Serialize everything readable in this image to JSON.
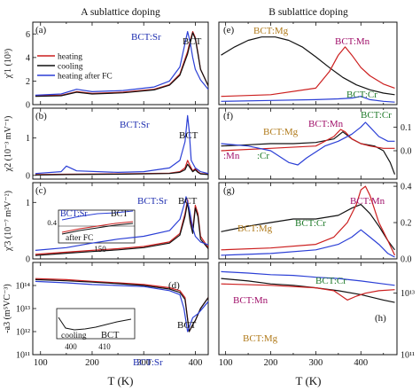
{
  "figure": {
    "col_titles": [
      "A sublattice doping",
      "B sublattice doping"
    ],
    "x_axis_label": "T (K)",
    "left_x_ticks": [
      100,
      200,
      300,
      400
    ],
    "right_x_ticks": [
      100,
      200,
      300,
      400
    ],
    "legend": [
      "heating",
      "cooling",
      "heating after FC"
    ]
  },
  "colors": {
    "heating": "#cc1f1f",
    "cooling": "#111111",
    "heating_after_fc": "#2b3fd6",
    "label_sr": "#1f2fb0",
    "label_mg": "#b07a1a",
    "label_mn": "#a0106a",
    "label_cr": "#1f7a2a",
    "label_black": "#111111"
  },
  "chart_data": [
    {
      "panel": "a",
      "type": "line",
      "ylabel": "χ'1 (10³)",
      "xlim": [
        85,
        425
      ],
      "ylim": [
        0,
        7
      ],
      "yticks": [
        "0",
        "2",
        "4",
        "6"
      ],
      "annotations": [
        "BCT:Sr",
        "BCT"
      ],
      "series": [
        {
          "name": "heating",
          "x": [
            90,
            140,
            170,
            200,
            260,
            320,
            350,
            370,
            385,
            390,
            395,
            400,
            405,
            410,
            425
          ],
          "values": [
            0.75,
            0.8,
            1.1,
            0.95,
            1.05,
            1.3,
            1.7,
            2.6,
            4.5,
            5.4,
            6.2,
            5.7,
            4.4,
            3.0,
            1.6
          ]
        },
        {
          "name": "cooling",
          "x": [
            90,
            140,
            170,
            200,
            260,
            320,
            350,
            370,
            385,
            390,
            395,
            400,
            405,
            410,
            425
          ],
          "values": [
            0.7,
            0.75,
            1.05,
            0.9,
            1.0,
            1.25,
            1.65,
            2.5,
            4.3,
            5.2,
            6.1,
            5.6,
            4.3,
            3.0,
            1.6
          ]
        },
        {
          "name": "heating after FC",
          "x": [
            90,
            140,
            170,
            200,
            260,
            320,
            350,
            370,
            380,
            385,
            390,
            395,
            400,
            410,
            425
          ],
          "values": [
            0.8,
            0.9,
            1.3,
            1.1,
            1.2,
            1.5,
            2.0,
            3.2,
            5.2,
            6.2,
            5.3,
            4.0,
            3.0,
            2.1,
            1.3
          ]
        }
      ]
    },
    {
      "panel": "b",
      "type": "line",
      "ylabel": "χ2 (10⁻³ mV⁻¹)",
      "xlim": [
        85,
        425
      ],
      "ylim": [
        -0.1,
        1.8
      ],
      "yticks": [
        "0",
        "1"
      ],
      "annotations": [
        "BCT:Sr",
        "BCT"
      ],
      "series": [
        {
          "name": "heating",
          "x": [
            90,
            150,
            250,
            350,
            370,
            380,
            385,
            390,
            395,
            400,
            405,
            410,
            425
          ],
          "values": [
            0.02,
            0.03,
            0.04,
            0.06,
            0.1,
            0.2,
            0.4,
            0.25,
            0.12,
            0.18,
            0.1,
            0.05,
            0.03
          ]
        },
        {
          "name": "cooling",
          "x": [
            90,
            150,
            250,
            350,
            370,
            380,
            385,
            390,
            395,
            400,
            405,
            410,
            425
          ],
          "values": [
            0.01,
            0.02,
            0.03,
            0.05,
            0.08,
            0.15,
            0.3,
            0.2,
            0.1,
            0.15,
            0.08,
            0.04,
            0.02
          ]
        },
        {
          "name": "heating after FC",
          "x": [
            90,
            140,
            150,
            170,
            250,
            300,
            350,
            370,
            380,
            385,
            388,
            392,
            400,
            410,
            425
          ],
          "values": [
            0.05,
            0.1,
            0.25,
            0.12,
            0.08,
            0.1,
            0.2,
            0.4,
            0.9,
            1.6,
            1.2,
            0.4,
            0.2,
            0.1,
            0.05
          ]
        }
      ]
    },
    {
      "panel": "c",
      "type": "line",
      "ylabel": "χ'3 (10⁻⁷ m²V⁻²)",
      "xlim": [
        85,
        425
      ],
      "ylim": [
        0,
        1.35
      ],
      "yticks": [
        "0",
        "1"
      ],
      "annotations": [
        "BCT:Sr",
        "BCT",
        "BCT:Sr",
        "BCT",
        "after FC"
      ],
      "inset": {
        "xticks": [
          "150"
        ],
        "yticks": [
          "0.4"
        ]
      },
      "series": [
        {
          "name": "heating",
          "x": [
            90,
            150,
            200,
            250,
            300,
            350,
            370,
            380,
            385,
            390,
            395,
            400,
            405,
            410,
            425
          ],
          "values": [
            0.08,
            0.12,
            0.15,
            0.18,
            0.22,
            0.3,
            0.45,
            0.8,
            1.05,
            0.7,
            0.5,
            0.95,
            0.8,
            0.4,
            0.2
          ]
        },
        {
          "name": "cooling",
          "x": [
            90,
            150,
            200,
            250,
            300,
            350,
            370,
            380,
            385,
            390,
            395,
            400,
            405,
            410,
            425
          ],
          "values": [
            0.06,
            0.1,
            0.13,
            0.16,
            0.2,
            0.28,
            0.42,
            0.75,
            1.0,
            0.65,
            0.45,
            0.9,
            0.75,
            0.35,
            0.18
          ]
        },
        {
          "name": "heating after FC",
          "x": [
            90,
            150,
            200,
            250,
            300,
            350,
            370,
            378,
            382,
            388,
            395,
            400,
            410,
            425
          ],
          "values": [
            0.15,
            0.2,
            0.28,
            0.35,
            0.4,
            0.5,
            0.7,
            0.95,
            1.1,
            0.9,
            0.55,
            0.4,
            0.3,
            0.25
          ]
        }
      ]
    },
    {
      "panel": "d",
      "type": "line",
      "ylabel": "-a3 (m⁵VC⁻³)",
      "scale": "log",
      "xlim": [
        85,
        425
      ],
      "ylim": [
        100000000000.0,
        1000000000000000.0
      ],
      "yticks": [
        "10¹¹",
        "10¹²",
        "10¹³",
        "10¹⁴"
      ],
      "annotations": [
        "BCT",
        "BCT:Sr",
        "BCT"
      ],
      "inset": {
        "xticks": [
          "400",
          "410"
        ],
        "label": "cooling"
      },
      "series": [
        {
          "name": "heating",
          "x": [
            90,
            150,
            200,
            250,
            300,
            350,
            370,
            380,
            388,
            395,
            400,
            410,
            425
          ],
          "values": [
            200000000000000.0,
            180000000000000.0,
            150000000000000.0,
            130000000000000.0,
            110000000000000.0,
            80000000000000.0,
            60000000000000.0,
            30000000000000.0,
            1000000000000.0,
            2000000000000.0,
            3000000000000.0,
            10000000000000.0,
            30000000000000.0
          ]
        },
        {
          "name": "cooling",
          "x": [
            90,
            150,
            200,
            250,
            300,
            350,
            370,
            380,
            388,
            395,
            400,
            410,
            425
          ],
          "values": [
            180000000000000.0,
            160000000000000.0,
            140000000000000.0,
            120000000000000.0,
            100000000000000.0,
            70000000000000.0,
            50000000000000.0,
            25000000000000.0,
            1000000000000.0,
            2000000000000.0,
            3000000000000.0,
            10000000000000.0,
            30000000000000.0
          ]
        },
        {
          "name": "heating after FC",
          "x": [
            90,
            150,
            200,
            250,
            300,
            350,
            370,
            378,
            385,
            395,
            405,
            425
          ],
          "values": [
            150000000000000.0,
            130000000000000.0,
            110000000000000.0,
            100000000000000.0,
            90000000000000.0,
            60000000000000.0,
            40000000000000.0,
            10000000000000.0,
            1000000000000.0,
            4000000000000.0,
            6000000000000.0,
            20000000000000.0
          ]
        }
      ]
    },
    {
      "panel": "e",
      "type": "line",
      "ylabel": "",
      "xlim": [
        85,
        480
      ],
      "ylim": [
        0,
        1
      ],
      "yticks": [],
      "annotations": [
        "BCT:Mg",
        "BCT:Mn",
        "BCT:Cr"
      ],
      "series": [
        {
          "name": "BCT:Mg heating",
          "x": [
            90,
            120,
            150,
            180,
            210,
            240,
            270,
            300,
            330,
            360,
            390,
            420,
            450,
            475
          ],
          "values": [
            0.6,
            0.7,
            0.78,
            0.82,
            0.82,
            0.78,
            0.7,
            0.58,
            0.45,
            0.33,
            0.24,
            0.18,
            0.14,
            0.12
          ]
        },
        {
          "name": "BCT:Mn heating",
          "x": [
            90,
            200,
            300,
            330,
            350,
            365,
            380,
            400,
            420,
            450,
            475
          ],
          "values": [
            0.1,
            0.12,
            0.2,
            0.4,
            0.6,
            0.7,
            0.6,
            0.45,
            0.35,
            0.25,
            0.2
          ]
        },
        {
          "name": "BCT:Cr heating",
          "x": [
            90,
            200,
            300,
            350,
            380,
            400,
            420,
            450,
            475
          ],
          "values": [
            0.04,
            0.05,
            0.06,
            0.07,
            0.08,
            0.1,
            0.06,
            0.04,
            0.03
          ]
        }
      ]
    },
    {
      "panel": "f",
      "type": "line",
      "ylabel": "",
      "xlim": [
        85,
        480
      ],
      "ylim": [
        -0.12,
        0.18
      ],
      "yticks": [
        "0.0",
        "0.1"
      ],
      "annotations": [
        "BCT:Mg",
        "BCT:Mn",
        "BCT:Cr",
        ":Mn",
        ":Cr"
      ],
      "series": [
        {
          "name": "BCT:Mg heating",
          "x": [
            90,
            150,
            200,
            250,
            300,
            340,
            360,
            380,
            400,
            430,
            450,
            465,
            475
          ],
          "values": [
            0.02,
            0.025,
            0.03,
            0.03,
            0.035,
            0.05,
            0.08,
            0.05,
            0.03,
            0.02,
            0.0,
            -0.05,
            -0.1
          ]
        },
        {
          "name": "BCT:Mn heating",
          "x": [
            90,
            200,
            300,
            340,
            355,
            365,
            380,
            400,
            420,
            450,
            475
          ],
          "values": [
            0.0,
            0.01,
            0.02,
            0.06,
            0.09,
            0.08,
            0.05,
            0.03,
            0.02,
            0.01,
            0.01
          ]
        },
        {
          "name": "BCT:Cr heating",
          "x": [
            90,
            150,
            200,
            240,
            260,
            280,
            320,
            350,
            380,
            400,
            410,
            420,
            440,
            460,
            475
          ],
          "values": [
            0.03,
            0.02,
            0.0,
            -0.05,
            -0.06,
            -0.03,
            0.02,
            0.04,
            0.07,
            0.1,
            0.12,
            0.1,
            0.06,
            0.04,
            0.04
          ]
        }
      ]
    },
    {
      "panel": "g",
      "type": "line",
      "ylabel": "",
      "xlim": [
        85,
        480
      ],
      "ylim": [
        0,
        0.42
      ],
      "yticks": [
        "0.0",
        "0.2",
        "0.4"
      ],
      "annotations": [
        "BCT:Mn",
        "BCT:Cr",
        "BCT:Mg"
      ],
      "series": [
        {
          "name": "BCT:Mg heating",
          "x": [
            90,
            150,
            200,
            250,
            300,
            350,
            380,
            400,
            420,
            440,
            460,
            475
          ],
          "values": [
            0.15,
            0.18,
            0.2,
            0.22,
            0.22,
            0.24,
            0.28,
            0.3,
            0.25,
            0.18,
            0.1,
            0.05
          ]
        },
        {
          "name": "BCT:Mn heating",
          "x": [
            90,
            200,
            300,
            340,
            370,
            390,
            400,
            410,
            420,
            440,
            460,
            475
          ],
          "values": [
            0.05,
            0.06,
            0.08,
            0.12,
            0.2,
            0.3,
            0.38,
            0.4,
            0.35,
            0.2,
            0.1,
            0.02
          ]
        },
        {
          "name": "BCT:Cr heating",
          "x": [
            90,
            200,
            300,
            350,
            380,
            400,
            420,
            440,
            460,
            475
          ],
          "values": [
            0.02,
            0.03,
            0.05,
            0.08,
            0.12,
            0.16,
            0.12,
            0.08,
            0.03,
            0.01
          ]
        }
      ]
    },
    {
      "panel": "h",
      "type": "line",
      "ylabel": "",
      "scale": "log",
      "xlim": [
        85,
        480
      ],
      "ylim": [
        100000000000.0,
        100000000000000.0
      ],
      "yticks": [
        "10¹¹",
        "10¹³"
      ],
      "annotations": [
        "BCT:Cr",
        "BCT:Mn",
        "BCT:Mg"
      ],
      "series": [
        {
          "name": "BCT:Mg heating",
          "x": [
            90,
            150,
            200,
            250,
            300,
            350,
            400,
            450,
            475
          ],
          "values": [
            30000000000000.0,
            25000000000000.0,
            20000000000000.0,
            18000000000000.0,
            15000000000000.0,
            12000000000000.0,
            9000000000000.0,
            6000000000000.0,
            5000000000000.0
          ]
        },
        {
          "name": "BCT:Mn heating",
          "x": [
            90,
            200,
            300,
            340,
            370,
            390,
            410,
            440,
            475
          ],
          "values": [
            20000000000000.0,
            18000000000000.0,
            15000000000000.0,
            12000000000000.0,
            6000000000000.0,
            8000000000000.0,
            10000000000000.0,
            12000000000000.0,
            13000000000000.0
          ]
        },
        {
          "name": "BCT:Cr heating",
          "x": [
            90,
            150,
            200,
            250,
            280,
            300,
            350,
            400,
            450,
            475
          ],
          "values": [
            50000000000000.0,
            45000000000000.0,
            40000000000000.0,
            38000000000000.0,
            35000000000000.0,
            33000000000000.0,
            30000000000000.0,
            25000000000000.0,
            20000000000000.0,
            18000000000000.0
          ]
        }
      ]
    }
  ]
}
